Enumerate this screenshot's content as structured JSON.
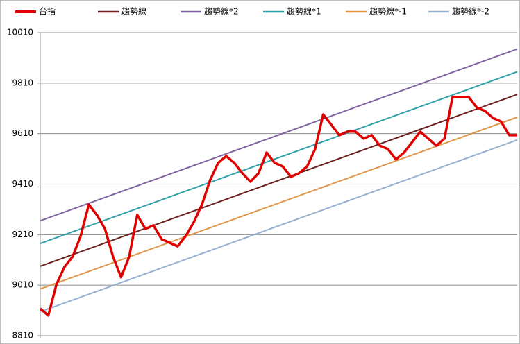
{
  "chart_data": {
    "type": "line",
    "xlim": [
      0,
      59
    ],
    "ylim": [
      8810,
      10010
    ],
    "yticks": [
      8810,
      9010,
      9210,
      9410,
      9610,
      9810,
      10010
    ],
    "grid": true,
    "legend": "top",
    "series": [
      {
        "name": "台指",
        "color": "#e00000",
        "x": [
          0,
          1,
          2,
          3,
          4,
          5,
          6,
          7,
          8,
          9,
          10,
          11,
          12,
          13,
          14,
          15,
          16,
          17,
          18,
          19,
          20,
          21,
          22,
          23,
          24,
          25,
          26,
          27,
          28,
          29,
          30,
          31,
          32,
          33,
          34,
          35,
          36,
          37,
          38,
          39,
          40,
          41,
          42,
          43,
          44,
          45,
          46,
          47,
          48,
          49,
          50,
          51,
          52,
          53,
          54,
          55,
          56,
          57,
          58,
          59
        ],
        "values": [
          8917,
          8890,
          9013,
          9082,
          9123,
          9205,
          9329,
          9288,
          9233,
          9123,
          9041,
          9123,
          9288,
          9233,
          9247,
          9192,
          9178,
          9164,
          9205,
          9260,
          9329,
          9425,
          9494,
          9521,
          9494,
          9453,
          9420,
          9453,
          9535,
          9494,
          9480,
          9439,
          9453,
          9480,
          9549,
          9686,
          9645,
          9604,
          9618,
          9618,
          9590,
          9604,
          9562,
          9549,
          9508,
          9535,
          9576,
          9618,
          9590,
          9562,
          9590,
          9755,
          9755,
          9755,
          9713,
          9700,
          9672,
          9658,
          9604,
          9604
        ]
      },
      {
        "name": "趨勢線",
        "color": "#6b1f1f",
        "x": [
          0,
          59
        ],
        "values": [
          9085,
          9765
        ]
      },
      {
        "name": "趨勢線*2",
        "color": "#8064a2",
        "x": [
          0,
          59
        ],
        "values": [
          9265,
          9945
        ]
      },
      {
        "name": "趨勢線*1",
        "color": "#31a0a8",
        "x": [
          0,
          59
        ],
        "values": [
          9175,
          9855
        ]
      },
      {
        "name": "趨勢線*-1",
        "color": "#e0964a",
        "x": [
          0,
          59
        ],
        "values": [
          8995,
          9675
        ]
      },
      {
        "name": "趨勢線*-2",
        "color": "#96b0cf",
        "x": [
          0,
          59
        ],
        "values": [
          8905,
          9585
        ]
      }
    ]
  }
}
